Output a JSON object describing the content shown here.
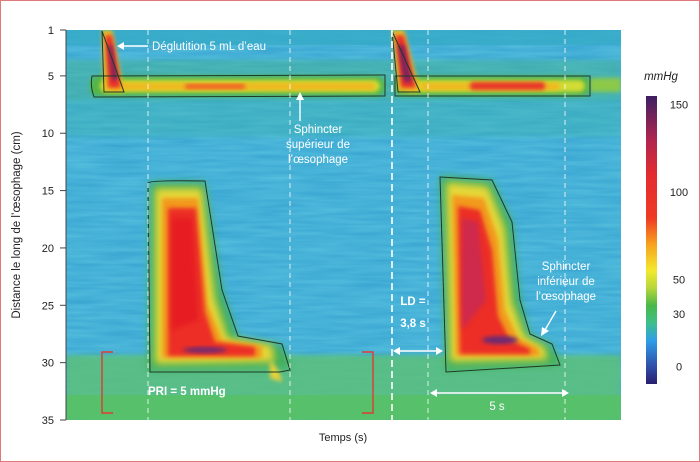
{
  "chart_data": {
    "type": "heatmap",
    "title": "",
    "xlabel": "Temps (s)",
    "ylabel": "Distance le long de l’œsophage (cm)",
    "ylim": [
      35,
      1
    ],
    "yticks": [
      1,
      5,
      10,
      15,
      20,
      25,
      30,
      35
    ],
    "colorbar": {
      "title": "mmHg",
      "range": [
        -10,
        155
      ],
      "ticks": [
        0,
        30,
        50,
        100,
        150
      ],
      "stops": [
        {
          "value": -10,
          "color": "#2a1f6e"
        },
        {
          "value": 0,
          "color": "#2f4fa8"
        },
        {
          "value": 15,
          "color": "#2f9ee8"
        },
        {
          "value": 25,
          "color": "#3fbf8a"
        },
        {
          "value": 35,
          "color": "#49b848"
        },
        {
          "value": 45,
          "color": "#b7d63a"
        },
        {
          "value": 55,
          "color": "#f3e92e"
        },
        {
          "value": 70,
          "color": "#f6a21d"
        },
        {
          "value": 85,
          "color": "#ef3a24"
        },
        {
          "value": 110,
          "color": "#e32b2f"
        },
        {
          "value": 130,
          "color": "#b0254f"
        },
        {
          "value": 155,
          "color": "#3e1f63"
        }
      ]
    },
    "annotations": {
      "swallow": "Déglutition 5 mL d’eau",
      "ues": [
        "Sphincter",
        "supérieur de",
        "l’œsophage"
      ],
      "les": [
        "Sphincter",
        "inférieur de",
        "l’œsophage"
      ],
      "irp": "PRI = 5 mmHg",
      "dl": [
        "LD =",
        "3,8 s"
      ],
      "duration": "5 s"
    }
  }
}
